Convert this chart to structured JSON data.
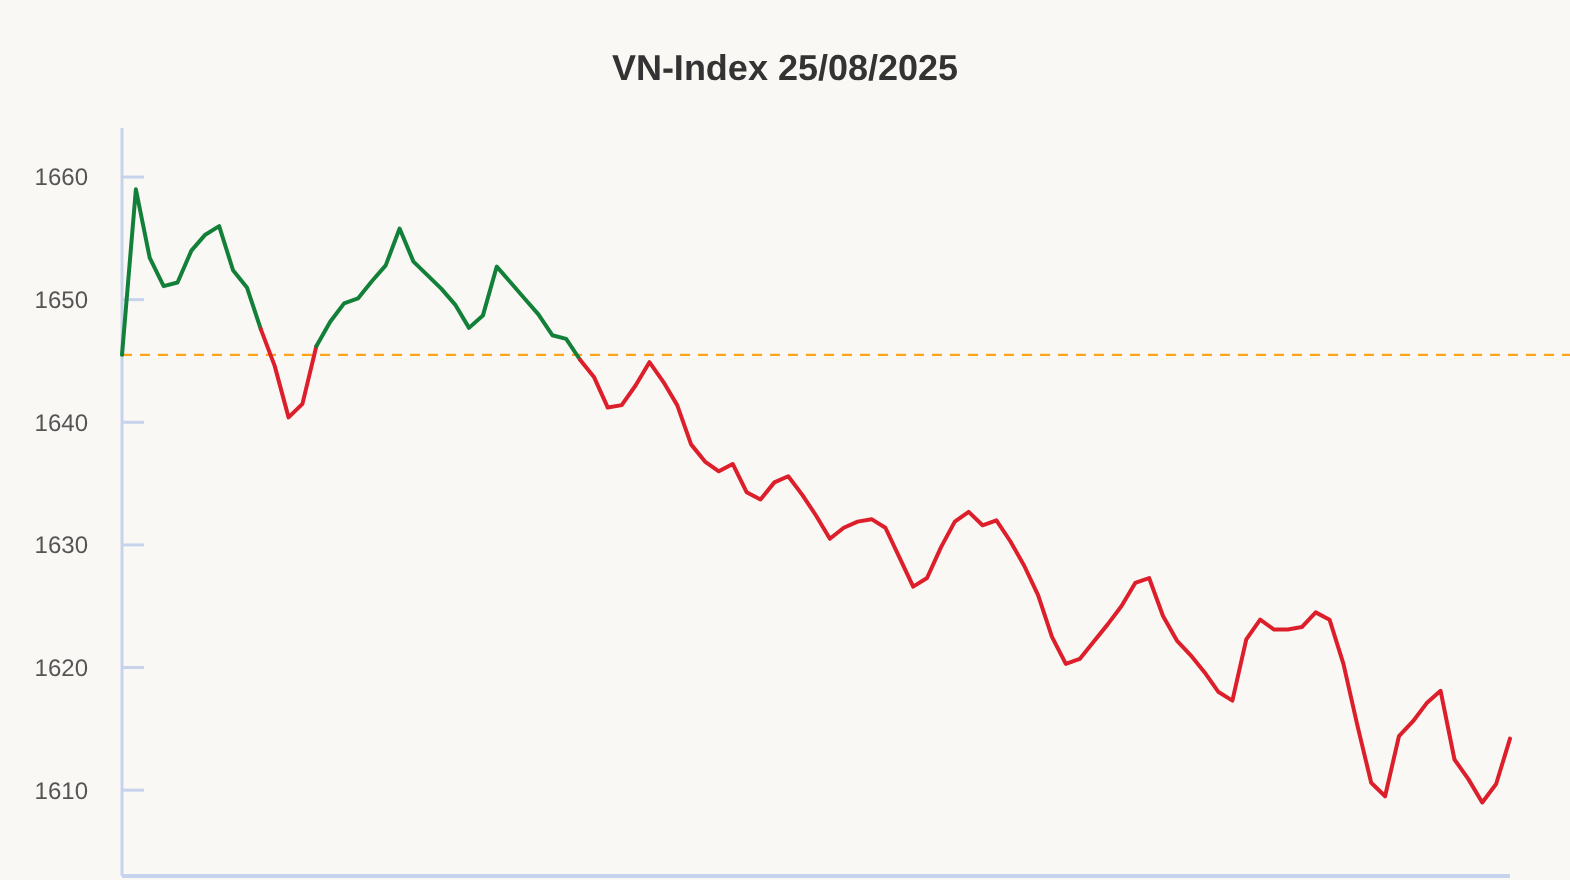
{
  "chart_data": {
    "type": "line",
    "title": "VN-Index 25/08/2025",
    "categories": [
      null,
      null,
      null,
      null,
      null,
      null,
      null,
      null,
      null,
      null,
      null,
      null,
      null,
      null,
      null,
      null,
      null,
      null,
      null,
      null,
      null,
      null,
      null,
      null,
      null,
      null,
      null,
      null,
      null,
      null,
      null,
      null,
      null,
      null,
      null,
      null,
      null,
      null,
      null,
      null,
      null,
      null,
      null,
      null,
      null,
      null,
      null,
      null,
      null,
      null,
      null,
      null,
      null,
      null,
      null,
      null,
      null,
      null,
      null,
      null,
      null,
      null,
      null,
      null,
      null,
      null,
      null,
      null,
      null,
      null,
      null,
      null,
      null,
      null,
      null,
      null,
      null,
      null,
      null,
      null,
      null,
      null,
      null,
      null,
      null,
      null,
      null,
      null,
      null,
      null,
      null,
      null,
      null,
      null,
      null,
      null,
      null,
      null,
      null,
      null,
      null
    ],
    "series": [
      {
        "color": "#13803a",
        "values": [
          1645.5,
          1659.0,
          1653.4,
          1651.1,
          1651.4,
          1654.0,
          1655.3,
          1656.0,
          1652.4,
          1651.0,
          1647.6,
          null,
          null,
          null,
          null,
          null,
          null,
          null,
          null,
          null,
          null,
          null,
          null,
          null,
          null,
          null,
          null,
          null,
          null,
          null,
          null,
          null,
          null,
          null,
          null,
          null,
          null,
          null,
          null,
          null,
          null,
          null,
          null,
          null,
          null,
          null,
          null,
          null,
          null,
          null,
          null,
          null,
          null,
          null,
          null,
          null,
          null,
          null,
          null,
          null,
          null,
          null,
          null,
          null,
          null,
          null,
          null,
          null,
          null,
          null,
          null,
          null,
          null,
          null,
          null,
          null,
          null,
          null,
          null,
          null,
          null,
          null,
          null,
          null,
          null,
          null,
          null,
          null,
          null,
          null,
          null,
          null,
          null,
          null,
          null,
          null,
          null,
          null,
          null,
          null,
          null
        ]
      },
      {
        "color": "#dc1f2a",
        "values": [
          null,
          null,
          null,
          null,
          null,
          null,
          null,
          null,
          null,
          null,
          1647.6,
          1644.6,
          1640.4,
          1641.5,
          1646.2,
          null,
          null,
          null,
          null,
          null,
          null,
          null,
          null,
          null,
          null,
          null,
          null,
          null,
          null,
          null,
          null,
          null,
          null,
          null,
          null,
          null,
          null,
          null,
          null,
          null,
          null,
          null,
          null,
          null,
          null,
          null,
          null,
          null,
          null,
          null,
          null,
          null,
          null,
          null,
          null,
          null,
          null,
          null,
          null,
          null,
          null,
          null,
          null,
          null,
          null,
          null,
          null,
          null,
          null,
          null,
          null,
          null,
          null,
          null,
          null,
          null,
          null,
          null,
          null,
          null,
          null,
          null,
          null,
          null,
          null,
          null,
          null,
          null,
          null,
          null,
          null,
          null,
          null,
          null,
          null,
          null,
          null,
          null,
          null,
          null,
          null
        ]
      },
      {
        "color": "#13803a",
        "values": [
          null,
          null,
          null,
          null,
          null,
          null,
          null,
          null,
          null,
          null,
          null,
          null,
          null,
          null,
          1646.2,
          1648.2,
          1649.7,
          1650.1,
          1651.5,
          1652.8,
          1655.8,
          1653.1,
          1652.0,
          1650.9,
          1649.6,
          1647.7,
          1648.7,
          1652.7,
          1651.4,
          1650.1,
          1648.8,
          1647.1,
          1646.8,
          1645.1,
          null,
          null,
          null,
          null,
          null,
          null,
          null,
          null,
          null,
          null,
          null,
          null,
          null,
          null,
          null,
          null,
          null,
          null,
          null,
          null,
          null,
          null,
          null,
          null,
          null,
          null,
          null,
          null,
          null,
          null,
          null,
          null,
          null,
          null,
          null,
          null,
          null,
          null,
          null,
          null,
          null,
          null,
          null,
          null,
          null,
          null,
          null,
          null,
          null,
          null,
          null,
          null,
          null,
          null,
          null,
          null,
          null,
          null,
          null,
          null,
          null,
          null,
          null,
          null,
          null,
          null,
          null
        ]
      },
      {
        "color": "#dc1f2a",
        "values": [
          null,
          null,
          null,
          null,
          null,
          null,
          null,
          null,
          null,
          null,
          null,
          null,
          null,
          null,
          null,
          null,
          null,
          null,
          null,
          null,
          null,
          null,
          null,
          null,
          null,
          null,
          null,
          null,
          null,
          null,
          null,
          null,
          null,
          1645.1,
          1643.7,
          1641.2,
          1641.4,
          1643.0,
          1644.9,
          1643.3,
          1641.4,
          1638.2,
          1636.8,
          1636.0,
          1636.6,
          1634.3,
          1633.7,
          1635.1,
          1635.6,
          1634.1,
          1632.4,
          1630.5,
          1631.4,
          1631.9,
          1632.1,
          1631.4,
          1629.0,
          1626.6,
          1627.3,
          1629.8,
          1631.9,
          1632.7,
          1631.6,
          1632.0,
          1630.3,
          1628.3,
          1625.9,
          1622.5,
          1620.3,
          1620.7,
          1622.1,
          1623.5,
          1625.0,
          1626.9,
          1627.3,
          1624.2,
          1622.2,
          1621.0,
          1619.6,
          1618.0,
          1617.3,
          1622.3,
          1623.9,
          1623.1,
          1623.1,
          1623.3,
          1624.5,
          1623.9,
          1620.3,
          1615.3,
          1610.6,
          1609.5,
          1614.4,
          1615.6,
          1617.1,
          1618.1,
          1612.5,
          1610.9,
          1609.0,
          1610.5,
          1614.2
        ]
      }
    ],
    "ylim": [
      1603,
      1664
    ],
    "yticks": [
      1610,
      1620,
      1630,
      1640,
      1650,
      1660
    ],
    "ref_lines": [
      {
        "axis": "y",
        "value": 1645.5,
        "color": "#ffa31a",
        "line_style": "dashed"
      }
    ],
    "tick_labels": "y",
    "line_style": "solid"
  }
}
